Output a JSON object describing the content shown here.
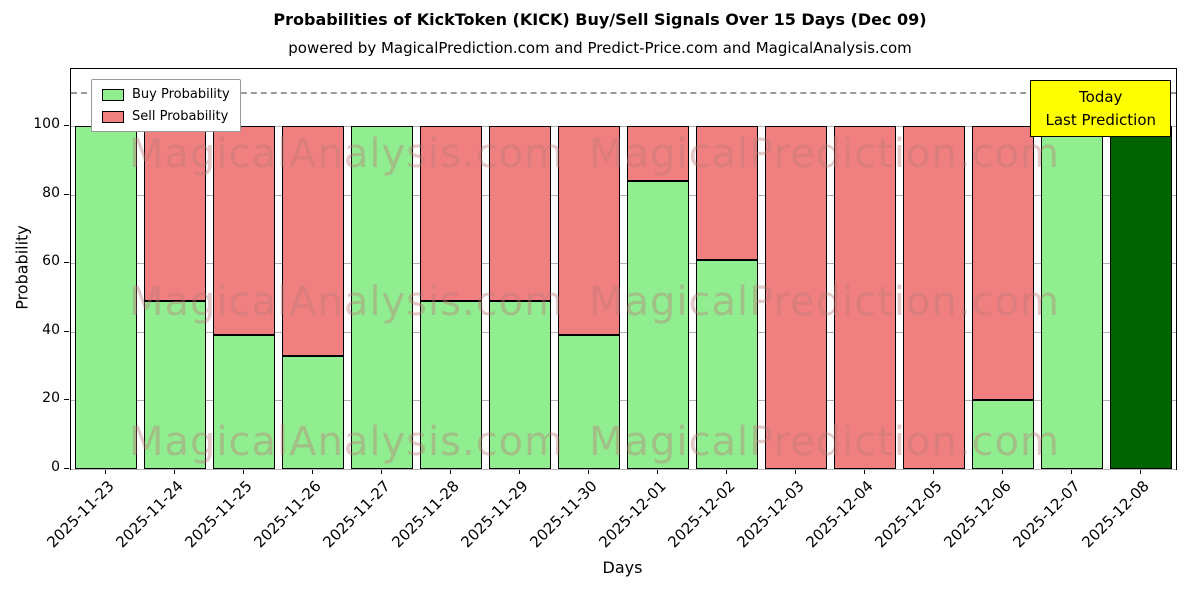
{
  "chart": {
    "title": "Probabilities of KickToken (KICK) Buy/Sell Signals Over 15 Days (Dec 09)",
    "subtitle": "powered by MagicalPrediction.com and Predict-Price.com and MagicalAnalysis.com",
    "xlabel": "Days",
    "ylabel": "Probability",
    "legend": {
      "buy": "Buy Probability",
      "sell": "Sell Probability"
    },
    "annotation": {
      "line1": "Today",
      "line2": "Last Prediction",
      "bg_color": "#ffff00"
    },
    "watermarks": [
      "MagicalAnalysis.com",
      "MagicalPrediction.com"
    ],
    "colors": {
      "buy": "#90EE90",
      "sell": "#F08080",
      "today": "#006400",
      "edge": "#000000",
      "grid": "#b3b3b3"
    }
  },
  "chart_data": {
    "type": "bar",
    "stacked": true,
    "title": "Probabilities of KickToken (KICK) Buy/Sell Signals Over 15 Days (Dec 09)",
    "xlabel": "Days",
    "ylabel": "Probability",
    "categories": [
      "2025-11-23",
      "2025-11-24",
      "2025-11-25",
      "2025-11-26",
      "2025-11-27",
      "2025-11-28",
      "2025-11-29",
      "2025-11-30",
      "2025-12-01",
      "2025-12-02",
      "2025-12-03",
      "2025-12-04",
      "2025-12-05",
      "2025-12-06",
      "2025-12-07",
      "2025-12-08"
    ],
    "series": [
      {
        "name": "Buy Probability",
        "color": "#90EE90",
        "values": [
          100,
          49,
          39,
          33,
          100,
          49,
          49,
          39,
          84,
          61,
          0,
          0,
          0,
          20,
          100,
          100
        ]
      },
      {
        "name": "Sell Probability",
        "color": "#F08080",
        "values": [
          0,
          51,
          61,
          67,
          0,
          51,
          51,
          61,
          16,
          39,
          100,
          100,
          100,
          80,
          0,
          0
        ]
      }
    ],
    "today_bar": {
      "index": 15,
      "color": "#006400",
      "label": "Today Last Prediction"
    },
    "yticks": [
      0,
      20,
      40,
      60,
      80,
      100
    ],
    "ylim": [
      0,
      116.6
    ],
    "dashed_line_y": 110,
    "grid": true,
    "legend_position": "upper left"
  }
}
